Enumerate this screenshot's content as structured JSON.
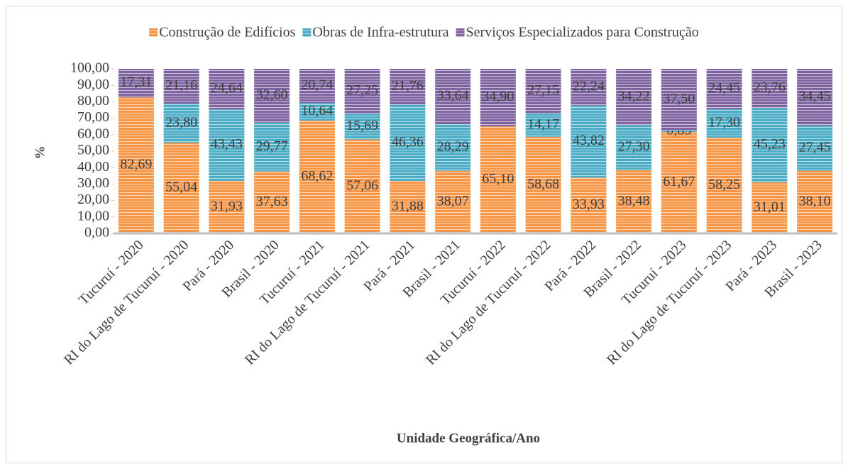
{
  "chart_data": {
    "type": "stacked_bar",
    "y_label": "%",
    "x_label": "Unidade Geográfica/Ano",
    "categories": [
      "Tucuruí - 2020",
      "RI do Lago de Tucuruí - 2020",
      "Pará - 2020",
      "Brasil - 2020",
      "Tucuruí - 2021",
      "RI do Lago de Tucuruí - 2021",
      "Pará - 2021",
      "Brasil - 2021",
      "Tucuruí - 2022",
      "RI do Lago de Tucuruí - 2022",
      "Pará - 2022",
      "Brasil - 2022",
      "Tucuruí - 2023",
      "RI do Lago de Tucuruí - 2023",
      "Pará - 2023",
      "Brasil - 2023"
    ],
    "series": [
      {
        "name": "Construção de Edifícios",
        "color": "#f79646",
        "values": [
          82.69,
          55.04,
          31.93,
          37.63,
          68.62,
          57.06,
          31.88,
          38.07,
          65.1,
          58.68,
          33.93,
          38.48,
          61.67,
          58.25,
          31.01,
          38.1
        ],
        "value_labels": [
          "82,69",
          "55,04",
          "31,93",
          "37,63",
          "68,62",
          "57,06",
          "31,88",
          "38,07",
          "65,10",
          "58,68",
          "33,93",
          "38,48",
          "61,67",
          "58,25",
          "31,01",
          "38,10"
        ]
      },
      {
        "name": "Obras de Infra-estrutura",
        "color": "#4bacc6",
        "values": [
          null,
          23.8,
          43.43,
          29.77,
          10.64,
          15.69,
          46.36,
          28.29,
          null,
          14.17,
          43.82,
          27.3,
          0.83,
          17.3,
          45.23,
          27.45
        ],
        "value_labels": [
          null,
          "23,80",
          "43,43",
          "29,77",
          "10,64",
          "15,69",
          "46,36",
          "28,29",
          null,
          "14,17",
          "43,82",
          "27,30",
          "0,83",
          "17,30",
          "45,23",
          "27,45"
        ]
      },
      {
        "name": "Serviços Especializados para Construção",
        "color": "#8064a2",
        "values": [
          17.31,
          21.16,
          24.64,
          32.6,
          20.74,
          27.25,
          21.76,
          33.64,
          34.9,
          27.15,
          22.24,
          34.22,
          37.5,
          24.45,
          23.76,
          34.45
        ],
        "value_labels": [
          "17,31",
          "21,16",
          "24,64",
          "32,60",
          "20,74",
          "27,25",
          "21,76",
          "33,64",
          "34,90",
          "27,15",
          "22,24",
          "34,22",
          "37,50",
          "24,45",
          "23,76",
          "34,45"
        ]
      }
    ],
    "ylim": [
      0,
      100
    ],
    "yticks": [
      {
        "value": 0,
        "label": "0,00"
      },
      {
        "value": 10,
        "label": "10,00"
      },
      {
        "value": 20,
        "label": "20,00"
      },
      {
        "value": 30,
        "label": "30,00"
      },
      {
        "value": 40,
        "label": "40,00"
      },
      {
        "value": 50,
        "label": "50,00"
      },
      {
        "value": 60,
        "label": "60,00"
      },
      {
        "value": 70,
        "label": "70,00"
      },
      {
        "value": 80,
        "label": "80,00"
      },
      {
        "value": 90,
        "label": "90,00"
      },
      {
        "value": 100,
        "label": "100,00"
      }
    ],
    "legend": "top"
  }
}
